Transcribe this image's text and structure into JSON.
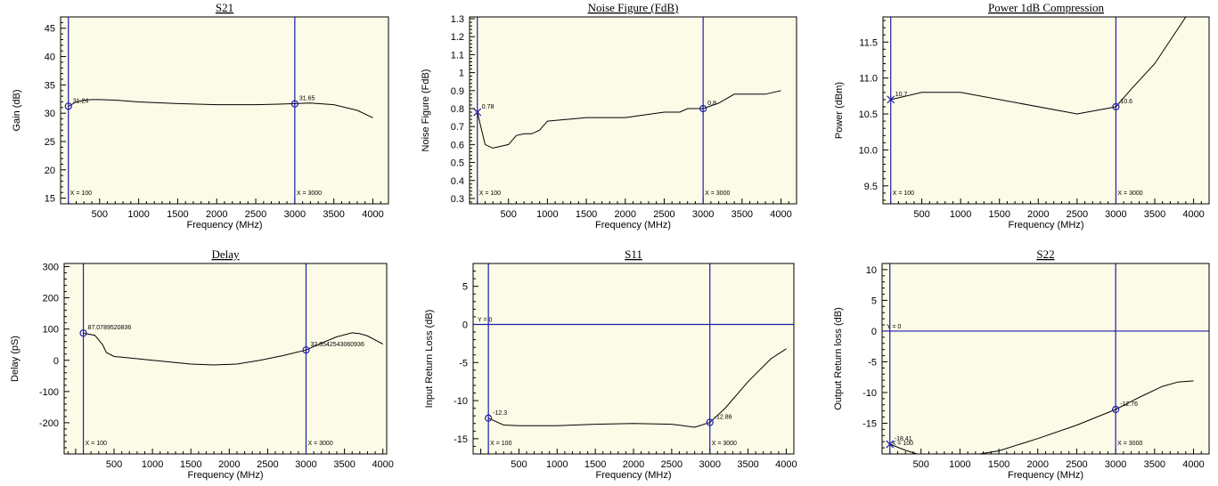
{
  "page": {
    "background": "#ffffff",
    "plot_background": "#fcfbe7",
    "marker_color": "#1c1cb0",
    "trace_color": "#000000"
  },
  "chart_data": [
    {
      "type": "line",
      "title": "S21",
      "xlabel": "Frequency (MHz)",
      "ylabel": "Gain (dB)",
      "xlim": [
        0,
        4200
      ],
      "ylim": [
        14,
        47
      ],
      "xticks": [
        500,
        1000,
        1500,
        2000,
        2500,
        3000,
        3500,
        4000
      ],
      "yticks": [
        15,
        20,
        25,
        30,
        35,
        40,
        45
      ],
      "series": [
        {
          "x": [
            100,
            200,
            300,
            400,
            500,
            700,
            1000,
            1500,
            2000,
            2500,
            2800,
            3000,
            3200,
            3500,
            3800,
            4000
          ],
          "y": [
            31.2,
            32.0,
            32.3,
            32.4,
            32.4,
            32.3,
            32.0,
            31.7,
            31.5,
            31.5,
            31.6,
            31.7,
            31.8,
            31.5,
            30.5,
            29.2
          ]
        }
      ],
      "vlines": [
        {
          "x": 100,
          "label": "X = 100"
        },
        {
          "x": 3000,
          "label": "X = 3000"
        }
      ],
      "hlines": [],
      "markers": [
        {
          "x": 100,
          "y": 31.24,
          "label": "31.24",
          "shape": "circle"
        },
        {
          "x": 3000,
          "y": 31.65,
          "label": "31.65",
          "shape": "circle"
        }
      ]
    },
    {
      "type": "line",
      "title": "Noise Figure (FdB)",
      "xlabel": "Frequency (MHz)",
      "ylabel": "Noise Figure (FdB)",
      "xlim": [
        0,
        4200
      ],
      "ylim": [
        0.27,
        1.31
      ],
      "xticks": [
        500,
        1000,
        1500,
        2000,
        2500,
        3000,
        3500,
        4000
      ],
      "yticks": [
        0.3,
        0.4,
        0.5,
        0.6,
        0.7,
        0.8,
        0.9,
        1,
        1.1,
        1.2,
        1.3
      ],
      "series": [
        {
          "x": [
            100,
            200,
            300,
            400,
            500,
            600,
            700,
            800,
            900,
            1000,
            1500,
            2000,
            2500,
            2700,
            2800,
            3000,
            3200,
            3400,
            3800,
            4000
          ],
          "y": [
            0.78,
            0.6,
            0.58,
            0.59,
            0.6,
            0.65,
            0.66,
            0.66,
            0.68,
            0.73,
            0.75,
            0.75,
            0.78,
            0.78,
            0.8,
            0.8,
            0.83,
            0.88,
            0.88,
            0.9
          ]
        }
      ],
      "vlines": [
        {
          "x": 100,
          "label": "X = 100"
        },
        {
          "x": 3000,
          "label": "X = 3000"
        }
      ],
      "hlines": [],
      "markers": [
        {
          "x": 100,
          "y": 0.78,
          "label": "0.78",
          "shape": "cross"
        },
        {
          "x": 3000,
          "y": 0.8,
          "label": "0.8",
          "shape": "circle"
        }
      ]
    },
    {
      "type": "line",
      "title": "Power 1dB Compression",
      "xlabel": "Frequency (MHz)",
      "ylabel": "Power (dBm)",
      "xlim": [
        0,
        4200
      ],
      "ylim": [
        9.25,
        11.85
      ],
      "xticks": [
        500,
        1000,
        1500,
        2000,
        2500,
        3000,
        3500,
        4000
      ],
      "yticks": [
        9.5,
        10.0,
        10.5,
        11.0,
        11.5
      ],
      "ytick_labels": [
        "9.5",
        "10.0",
        "10.5",
        "11.0",
        "11.5"
      ],
      "series": [
        {
          "x": [
            100,
            500,
            1000,
            2500,
            3000,
            3200,
            3500,
            3900
          ],
          "y": [
            10.7,
            10.8,
            10.8,
            10.5,
            10.6,
            10.85,
            11.2,
            11.85
          ]
        }
      ],
      "vlines": [
        {
          "x": 100,
          "label": "X = 100"
        },
        {
          "x": 3000,
          "label": "X = 3000"
        }
      ],
      "hlines": [],
      "markers": [
        {
          "x": 100,
          "y": 10.7,
          "label": "10.7",
          "shape": "cross"
        },
        {
          "x": 3000,
          "y": 10.6,
          "label": "10.6",
          "shape": "circle"
        }
      ]
    },
    {
      "type": "line",
      "title": "Delay",
      "xlabel": "Frequency (MHz)",
      "ylabel": "Delay (pS)",
      "xlim": [
        -150,
        4050
      ],
      "ylim": [
        -300,
        310
      ],
      "xticks": [
        500,
        1000,
        1500,
        2000,
        2500,
        3000,
        3500,
        4000
      ],
      "yticks": [
        -200,
        -100,
        0,
        100,
        200,
        300
      ],
      "series": [
        {
          "x": [
            100,
            250,
            350,
            400,
            500,
            600,
            800,
            1000,
            1500,
            1800,
            2100,
            2400,
            2700,
            3000,
            3200,
            3400,
            3600,
            3700,
            3800,
            4000
          ],
          "y": [
            87.1,
            80,
            50,
            25,
            12,
            10,
            5,
            0,
            -12,
            -15,
            -12,
            0,
            15,
            32.9,
            55,
            75,
            88,
            85,
            78,
            52
          ]
        }
      ],
      "vlines": [
        {
          "x": 100,
          "label": "X = 100"
        },
        {
          "x": 3000,
          "label": "X = 3000"
        }
      ],
      "hlines": [],
      "markers": [
        {
          "x": 100,
          "y": 87.07,
          "label": "87.0789520836",
          "shape": "circle"
        },
        {
          "x": 3000,
          "y": 32.9,
          "label": "32.8542543060936",
          "shape": "circle"
        }
      ]
    },
    {
      "type": "line",
      "title": "S11",
      "xlabel": "Frequency (MHz)",
      "ylabel": "Input Return Loss (dB)",
      "xlim": [
        -100,
        4100
      ],
      "ylim": [
        -17,
        8
      ],
      "xticks": [
        500,
        1000,
        1500,
        2000,
        2500,
        3000,
        3500,
        4000
      ],
      "yticks": [
        -15,
        -10,
        -5,
        0,
        5
      ],
      "series": [
        {
          "x": [
            100,
            300,
            500,
            1000,
            1500,
            2000,
            2500,
            2800,
            3000,
            3200,
            3500,
            3800,
            4000
          ],
          "y": [
            -12.3,
            -13.2,
            -13.3,
            -13.3,
            -13.1,
            -13.0,
            -13.1,
            -13.5,
            -12.86,
            -11.0,
            -7.5,
            -4.5,
            -3.2
          ]
        }
      ],
      "vlines": [
        {
          "x": 100,
          "label": "X = 100"
        },
        {
          "x": 3000,
          "label": "X = 3000"
        }
      ],
      "hlines": [
        {
          "y": 0,
          "label": "Y = 0"
        }
      ],
      "markers": [
        {
          "x": 100,
          "y": -12.3,
          "label": "-12.3",
          "shape": "circle"
        },
        {
          "x": 3000,
          "y": -12.86,
          "label": "-12.86",
          "shape": "circle"
        }
      ]
    },
    {
      "type": "line",
      "title": "S22",
      "xlabel": "Frequency (MHz)",
      "ylabel": "Output Return loss (dB)",
      "xlim": [
        0,
        4200
      ],
      "ylim": [
        -20,
        11
      ],
      "xticks": [
        500,
        1000,
        1500,
        2000,
        2500,
        3000,
        3500,
        4000
      ],
      "yticks": [
        -15,
        -10,
        -5,
        0,
        5,
        10
      ],
      "series": [
        {
          "x": [
            100,
            300,
            500,
            1000,
            1500,
            2000,
            2500,
            3000,
            3300,
            3600,
            3800,
            4000
          ],
          "y": [
            -18.41,
            -19.4,
            -20.2,
            -20.5,
            -19.5,
            -17.5,
            -15.3,
            -12.76,
            -10.8,
            -9.0,
            -8.3,
            -8.1
          ]
        }
      ],
      "vlines": [
        {
          "x": 100,
          "label": "X = 100"
        },
        {
          "x": 3000,
          "label": "X = 3000"
        }
      ],
      "hlines": [
        {
          "y": 0,
          "label": "Y = 0"
        }
      ],
      "markers": [
        {
          "x": 100,
          "y": -18.41,
          "label": "-18.41",
          "shape": "cross"
        },
        {
          "x": 3000,
          "y": -12.76,
          "label": "-12.76",
          "shape": "circle"
        }
      ]
    }
  ]
}
